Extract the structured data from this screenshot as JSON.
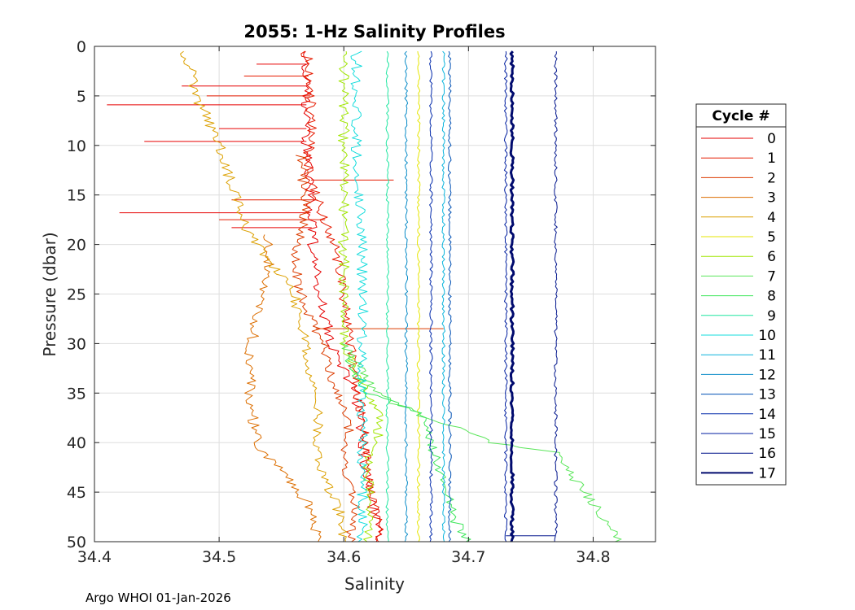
{
  "chart_data": {
    "type": "line",
    "title": "2055: 1-Hz Salinity Profiles",
    "xlabel": "Salinity",
    "ylabel": "Pressure (dbar)",
    "xlim": [
      34.4,
      34.85
    ],
    "ylim": [
      0,
      50
    ],
    "y_reversed": true,
    "grid": true,
    "x_ticks": [
      34.4,
      34.5,
      34.6,
      34.7,
      34.8
    ],
    "x_tick_labels": [
      "34.4",
      "34.5",
      "34.6",
      "34.7",
      "34.8"
    ],
    "y_ticks": [
      0,
      5,
      10,
      15,
      20,
      25,
      30,
      35,
      40,
      45,
      50
    ],
    "y_tick_labels": [
      "0",
      "5",
      "10",
      "15",
      "20",
      "25",
      "30",
      "35",
      "40",
      "45",
      "50"
    ],
    "legend_title": "Cycle #",
    "legend_position": "outside-right",
    "series": [
      {
        "name": "0",
        "color": "#e60000",
        "points": [
          [
            34.57,
            0.5
          ],
          [
            34.57,
            10
          ],
          [
            34.575,
            20
          ],
          [
            34.58,
            25
          ],
          [
            34.59,
            30
          ],
          [
            34.61,
            35
          ],
          [
            34.615,
            40
          ],
          [
            34.62,
            45
          ],
          [
            34.63,
            50
          ]
        ],
        "spikes": [
          [
            1.8,
            34.53
          ],
          [
            4.0,
            34.47
          ],
          [
            5.9,
            34.41
          ],
          [
            8.3,
            34.5
          ],
          [
            9.6,
            34.44
          ],
          [
            16.8,
            34.42
          ],
          [
            18.3,
            34.51
          ]
        ]
      },
      {
        "name": "1",
        "color": "#e61a00",
        "points": [
          [
            34.57,
            0.5
          ],
          [
            34.575,
            8
          ],
          [
            34.57,
            12
          ],
          [
            34.58,
            16
          ],
          [
            34.59,
            19
          ],
          [
            34.6,
            25
          ],
          [
            34.605,
            30
          ],
          [
            34.615,
            38
          ],
          [
            34.62,
            44
          ],
          [
            34.63,
            50
          ]
        ],
        "spikes": [
          [
            3.0,
            34.52
          ],
          [
            5.0,
            34.49
          ],
          [
            13.5,
            34.64
          ],
          [
            15.5,
            34.51
          ],
          [
            17.5,
            34.5
          ]
        ]
      },
      {
        "name": "2",
        "color": "#dc3c00",
        "points": [
          [
            34.565,
            11
          ],
          [
            34.57,
            16
          ],
          [
            34.56,
            22
          ],
          [
            34.57,
            27
          ],
          [
            34.585,
            30
          ],
          [
            34.59,
            34
          ],
          [
            34.605,
            38
          ],
          [
            34.6,
            42
          ],
          [
            34.61,
            46
          ],
          [
            34.605,
            50
          ]
        ],
        "spikes": [
          [
            28.5,
            34.68
          ]
        ]
      },
      {
        "name": "3",
        "color": "#dc6e00",
        "points": [
          [
            34.54,
            19
          ],
          [
            34.54,
            22
          ],
          [
            34.53,
            27
          ],
          [
            34.525,
            31
          ],
          [
            34.525,
            36
          ],
          [
            34.53,
            40
          ],
          [
            34.55,
            43
          ],
          [
            34.57,
            46
          ],
          [
            34.58,
            50
          ]
        ],
        "spikes": []
      },
      {
        "name": "4",
        "color": "#dca000",
        "points": [
          [
            34.47,
            0.5
          ],
          [
            34.48,
            3
          ],
          [
            34.48,
            5
          ],
          [
            34.49,
            7
          ],
          [
            34.5,
            10
          ],
          [
            34.51,
            14
          ],
          [
            34.52,
            18
          ],
          [
            34.53,
            20
          ],
          [
            34.56,
            25
          ],
          [
            34.57,
            30
          ],
          [
            34.575,
            35
          ],
          [
            34.58,
            38
          ],
          [
            34.575,
            40
          ],
          [
            34.585,
            44
          ],
          [
            34.6,
            48
          ],
          [
            34.6,
            50
          ]
        ],
        "spikes": []
      },
      {
        "name": "5",
        "color": "#e6e600",
        "points": [
          [
            34.66,
            0.5
          ],
          [
            34.66,
            50
          ]
        ],
        "spikes": []
      },
      {
        "name": "6",
        "color": "#a0e600",
        "points": [
          [
            34.6,
            0.5
          ],
          [
            34.6,
            30
          ],
          [
            34.61,
            33
          ],
          [
            34.62,
            35
          ],
          [
            34.63,
            38
          ],
          [
            34.62,
            42
          ],
          [
            34.62,
            46
          ],
          [
            34.62,
            50
          ]
        ],
        "spikes": []
      },
      {
        "name": "7",
        "color": "#5ae65a",
        "points": [
          [
            34.6,
            30
          ],
          [
            34.62,
            34
          ],
          [
            34.64,
            36
          ],
          [
            34.68,
            38
          ],
          [
            34.72,
            40
          ],
          [
            34.77,
            41
          ],
          [
            34.78,
            43
          ],
          [
            34.8,
            46
          ],
          [
            34.81,
            48
          ],
          [
            34.82,
            50
          ]
        ],
        "spikes": []
      },
      {
        "name": "8",
        "color": "#3ce65a",
        "points": [
          [
            34.6,
            31
          ],
          [
            34.62,
            35
          ],
          [
            34.66,
            37
          ],
          [
            34.67,
            40
          ],
          [
            34.68,
            44
          ],
          [
            34.69,
            48
          ],
          [
            34.7,
            50
          ]
        ],
        "spikes": []
      },
      {
        "name": "9",
        "color": "#1ee6a0",
        "points": [
          [
            34.635,
            0.5
          ],
          [
            34.635,
            50
          ]
        ],
        "spikes": []
      },
      {
        "name": "10",
        "color": "#14dcdc",
        "points": [
          [
            34.61,
            0.5
          ],
          [
            34.61,
            10
          ],
          [
            34.615,
            20
          ],
          [
            34.615,
            30
          ],
          [
            34.615,
            40
          ],
          [
            34.615,
            50
          ]
        ],
        "spikes": []
      },
      {
        "name": "11",
        "color": "#0ab4dc",
        "points": [
          [
            34.68,
            0.5
          ],
          [
            34.68,
            50
          ]
        ],
        "spikes": []
      },
      {
        "name": "12",
        "color": "#0a8cc8",
        "points": [
          [
            34.65,
            0.5
          ],
          [
            34.65,
            50
          ]
        ],
        "spikes": []
      },
      {
        "name": "13",
        "color": "#0050b4",
        "points": [
          [
            34.685,
            0.5
          ],
          [
            34.685,
            50
          ]
        ],
        "spikes": []
      },
      {
        "name": "14",
        "color": "#0028aa",
        "points": [
          [
            34.67,
            0.5
          ],
          [
            34.67,
            50
          ]
        ],
        "spikes": []
      },
      {
        "name": "15",
        "color": "#001ea0",
        "points": [
          [
            34.73,
            0.5
          ],
          [
            34.73,
            50
          ]
        ],
        "spikes": []
      },
      {
        "name": "16",
        "color": "#00148c",
        "points": [
          [
            34.77,
            0.5
          ],
          [
            34.77,
            50
          ]
        ],
        "spikes": [
          [
            49.4,
            34.73
          ]
        ]
      },
      {
        "name": "17",
        "color": "#000a6e",
        "points": [
          [
            34.735,
            0.5
          ],
          [
            34.735,
            50
          ]
        ],
        "spikes": [],
        "bold": true
      }
    ]
  },
  "footer": {
    "text": "Argo WHOI 01-Jan-2026"
  }
}
